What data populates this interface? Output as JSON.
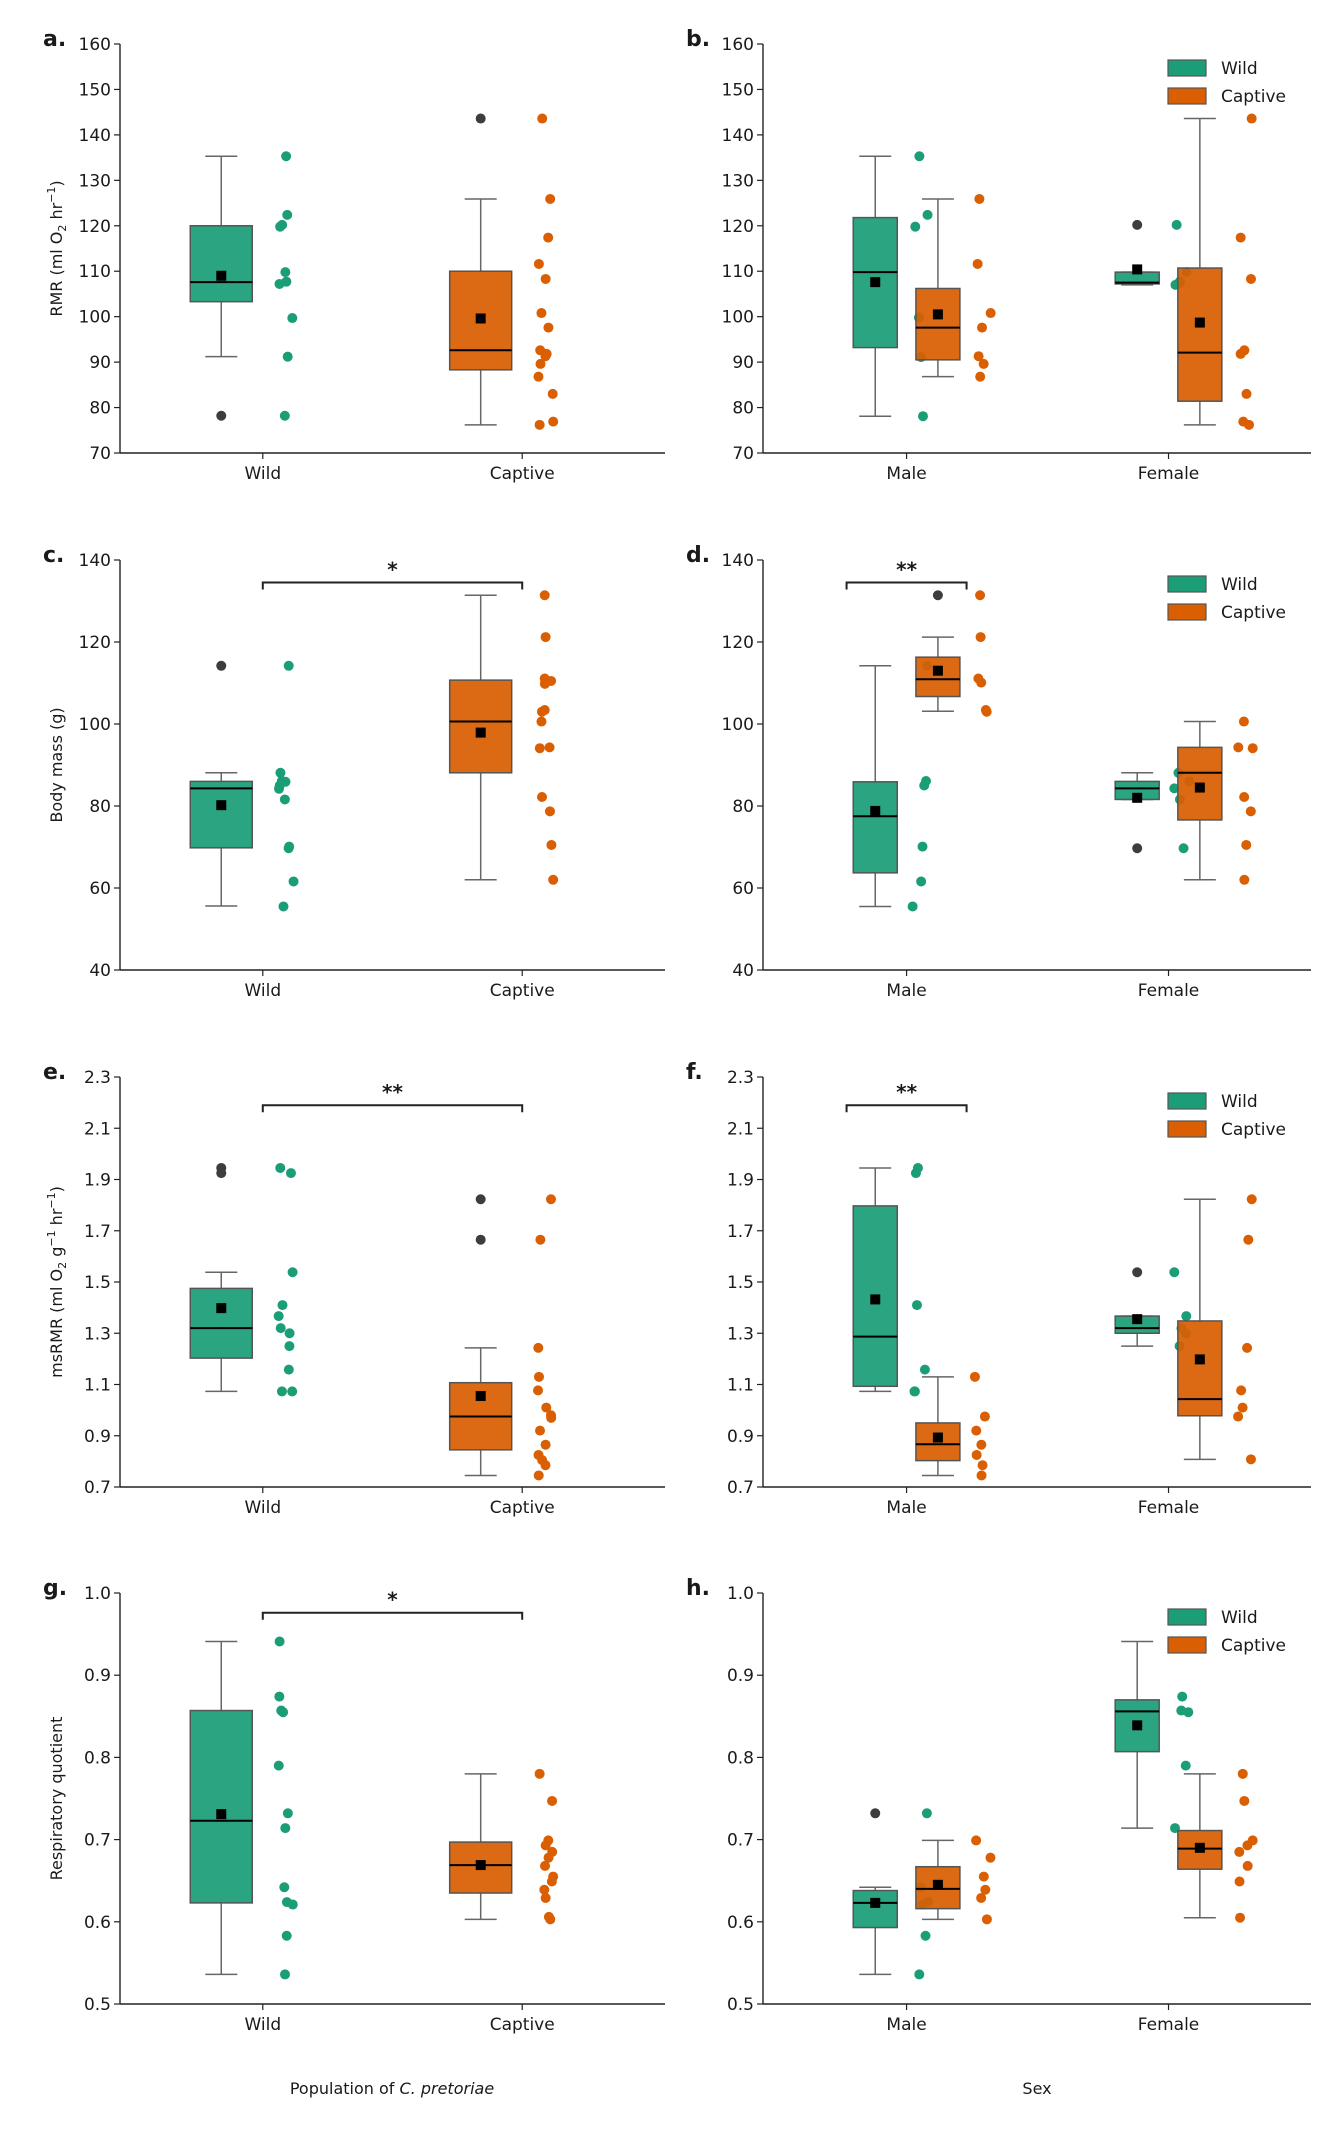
{
  "figure": {
    "colors": {
      "wild": "#1b9e77",
      "captive": "#d95f02",
      "outlier": "#3d3d3d",
      "mean": "#000000",
      "box_edge": "#555555"
    },
    "legend": {
      "entries": [
        "Wild",
        "Captive"
      ],
      "placement": "top-right"
    },
    "bottom_xlabels": {
      "left": {
        "prefix": "Population of ",
        "italic": "C. pretoriae"
      },
      "right": "Sex"
    }
  },
  "chart_data": [
    {
      "id": "a",
      "letter": "a.",
      "type": "box",
      "grouping": "population",
      "ylabel": "RMR (ml O2 hr-1)",
      "ylabel_parts": [
        "RMR (ml O",
        "2",
        " hr",
        "−1",
        ")"
      ],
      "ylim": [
        70,
        160
      ],
      "yticks": [
        70,
        80,
        90,
        100,
        110,
        120,
        130,
        140,
        150,
        160
      ],
      "tick_fmt": 0,
      "categories": [
        "Wild",
        "Captive"
      ],
      "legend": false,
      "significance": null,
      "groups": [
        {
          "category": "Wild",
          "series": "Wild",
          "q1": 103.3,
          "median": 107.6,
          "q3": 120.0,
          "whisker_low": 91.2,
          "whisker_high": 135.3,
          "mean": 109.0,
          "outliers": [
            78.2
          ],
          "points": [
            135.3,
            122.4,
            119.8,
            120.2,
            109.8,
            107.7,
            107.2,
            99.7,
            91.2,
            78.2
          ]
        },
        {
          "category": "Captive",
          "series": "Captive",
          "q1": 88.3,
          "median": 92.6,
          "q3": 110.0,
          "whisker_low": 76.2,
          "whisker_high": 125.9,
          "mean": 99.6,
          "outliers": [
            143.6
          ],
          "points": [
            143.6,
            125.9,
            117.4,
            111.6,
            108.3,
            100.8,
            97.6,
            92.6,
            91.8,
            91.3,
            89.6,
            86.8,
            83.0,
            76.9,
            76.2
          ]
        }
      ]
    },
    {
      "id": "b",
      "letter": "b.",
      "type": "box",
      "grouping": "sex",
      "ylabel": "",
      "ylim": [
        70,
        160
      ],
      "yticks": [
        70,
        80,
        90,
        100,
        110,
        120,
        130,
        140,
        150,
        160
      ],
      "tick_fmt": 0,
      "categories": [
        "Male",
        "Female"
      ],
      "legend": true,
      "significance": null,
      "groups": [
        {
          "category": "Male",
          "series": "Wild",
          "q1": 93.2,
          "median": 109.8,
          "q3": 121.8,
          "whisker_low": 78.1,
          "whisker_high": 135.3,
          "mean": 107.6,
          "outliers": [],
          "points": [
            135.3,
            122.4,
            119.8,
            99.8,
            91.1,
            78.1
          ]
        },
        {
          "category": "Male",
          "series": "Captive",
          "q1": 90.5,
          "median": 97.6,
          "q3": 106.2,
          "whisker_low": 86.8,
          "whisker_high": 125.9,
          "mean": 100.5,
          "outliers": [],
          "points": [
            125.9,
            111.6,
            100.8,
            97.6,
            91.3,
            89.6,
            86.8
          ]
        },
        {
          "category": "Female",
          "series": "Wild",
          "q1": 107.2,
          "median": 107.5,
          "q3": 109.8,
          "whisker_low": 107.0,
          "whisker_high": 109.8,
          "mean": 110.4,
          "outliers": [
            120.2
          ],
          "points": [
            120.2,
            109.8,
            107.7,
            107.4,
            107.0
          ]
        },
        {
          "category": "Female",
          "series": "Captive",
          "q1": 81.4,
          "median": 92.1,
          "q3": 110.7,
          "whisker_low": 76.2,
          "whisker_high": 143.6,
          "mean": 98.7,
          "outliers": [],
          "points": [
            143.6,
            117.4,
            108.3,
            92.6,
            91.8,
            83.0,
            76.9,
            76.2
          ]
        }
      ]
    },
    {
      "id": "c",
      "letter": "c.",
      "type": "box",
      "grouping": "population",
      "ylabel": "Body mass (g)",
      "ylim": [
        40,
        140
      ],
      "yticks": [
        40,
        60,
        80,
        100,
        120,
        140
      ],
      "tick_fmt": 0,
      "categories": [
        "Wild",
        "Captive"
      ],
      "legend": false,
      "significance": {
        "label": "*",
        "from": 0,
        "to": 1,
        "y": 134.5
      },
      "groups": [
        {
          "category": "Wild",
          "series": "Wild",
          "q1": 69.8,
          "median": 84.3,
          "q3": 86.0,
          "whisker_low": 55.6,
          "whisker_high": 88.1,
          "mean": 80.2,
          "outliers": [
            114.2
          ],
          "points": [
            114.2,
            88.1,
            86.1,
            85.9,
            85.0,
            84.2,
            81.6,
            70.1,
            69.7,
            61.6,
            55.5
          ]
        },
        {
          "category": "Captive",
          "series": "Captive",
          "q1": 88.1,
          "median": 100.6,
          "q3": 110.7,
          "whisker_low": 62.0,
          "whisker_high": 131.4,
          "mean": 97.9,
          "outliers": [],
          "points": [
            131.4,
            121.2,
            111.1,
            110.5,
            109.8,
            103.4,
            103.0,
            100.6,
            94.3,
            94.1,
            82.2,
            78.7,
            70.5,
            62.0
          ]
        }
      ]
    },
    {
      "id": "d",
      "letter": "d.",
      "type": "box",
      "grouping": "sex",
      "ylabel": "",
      "ylim": [
        40,
        140
      ],
      "yticks": [
        40,
        60,
        80,
        100,
        120,
        140
      ],
      "tick_fmt": 0,
      "categories": [
        "Male",
        "Female"
      ],
      "legend": true,
      "significance": {
        "label": "**",
        "from": 0,
        "to": 1,
        "y": 134.5,
        "within_category": 0
      },
      "groups": [
        {
          "category": "Male",
          "series": "Wild",
          "q1": 63.7,
          "median": 77.5,
          "q3": 85.9,
          "whisker_low": 55.5,
          "whisker_high": 114.2,
          "mean": 78.8,
          "outliers": [],
          "points": [
            114.2,
            86.1,
            85.0,
            70.1,
            61.6,
            55.5
          ]
        },
        {
          "category": "Male",
          "series": "Captive",
          "q1": 106.7,
          "median": 110.9,
          "q3": 116.3,
          "whisker_low": 103.1,
          "whisker_high": 121.2,
          "mean": 113.0,
          "outliers": [
            131.4
          ],
          "points": [
            131.4,
            121.2,
            111.1,
            110.1,
            103.4,
            103.0
          ]
        },
        {
          "category": "Female",
          "series": "Wild",
          "q1": 81.6,
          "median": 84.3,
          "q3": 86.0,
          "whisker_low": 81.6,
          "whisker_high": 88.1,
          "mean": 82.0,
          "outliers": [
            69.7
          ],
          "points": [
            88.1,
            86.0,
            84.3,
            81.6,
            69.7
          ]
        },
        {
          "category": "Female",
          "series": "Captive",
          "q1": 76.6,
          "median": 88.1,
          "q3": 94.3,
          "whisker_low": 62.0,
          "whisker_high": 100.6,
          "mean": 84.5,
          "outliers": [],
          "points": [
            100.6,
            94.3,
            94.1,
            82.2,
            78.7,
            70.5,
            62.0
          ]
        }
      ]
    },
    {
      "id": "e",
      "letter": "e.",
      "type": "box",
      "grouping": "population",
      "ylabel": "msRMR (ml O2 g-1 hr-1)",
      "ylabel_parts": [
        "msRMR (ml O",
        "2",
        " g",
        "−1",
        " hr",
        "−1",
        ")"
      ],
      "ylim": [
        0.7,
        2.3
      ],
      "yticks": [
        0.7,
        0.9,
        1.1,
        1.3,
        1.5,
        1.7,
        1.9,
        2.1,
        2.3
      ],
      "tick_fmt": 1,
      "categories": [
        "Wild",
        "Captive"
      ],
      "legend": false,
      "significance": {
        "label": "**",
        "from": 0,
        "to": 1,
        "y": 2.19
      },
      "groups": [
        {
          "category": "Wild",
          "series": "Wild",
          "q1": 1.203,
          "median": 1.32,
          "q3": 1.475,
          "whisker_low": 1.073,
          "whisker_high": 1.538,
          "mean": 1.398,
          "outliers": [
            1.945,
            1.925
          ],
          "points": [
            1.945,
            1.925,
            1.538,
            1.41,
            1.367,
            1.32,
            1.3,
            1.25,
            1.158,
            1.073,
            1.073
          ]
        },
        {
          "category": "Captive",
          "series": "Captive",
          "q1": 0.845,
          "median": 0.975,
          "q3": 1.107,
          "whisker_low": 0.745,
          "whisker_high": 1.243,
          "mean": 1.055,
          "outliers": [
            1.823,
            1.665
          ],
          "points": [
            1.823,
            1.665,
            1.243,
            1.13,
            1.077,
            1.01,
            0.98,
            0.97,
            0.92,
            0.865,
            0.825,
            0.805,
            0.785,
            0.745
          ]
        }
      ]
    },
    {
      "id": "f",
      "letter": "f.",
      "type": "box",
      "grouping": "sex",
      "ylabel": "",
      "ylim": [
        0.7,
        2.3
      ],
      "yticks": [
        0.7,
        0.9,
        1.1,
        1.3,
        1.5,
        1.7,
        1.9,
        2.1,
        2.3
      ],
      "tick_fmt": 1,
      "categories": [
        "Male",
        "Female"
      ],
      "legend": true,
      "significance": {
        "label": "**",
        "from": 0,
        "to": 1,
        "y": 2.19,
        "within_category": 0
      },
      "groups": [
        {
          "category": "Male",
          "series": "Wild",
          "q1": 1.093,
          "median": 1.287,
          "q3": 1.797,
          "whisker_low": 1.073,
          "whisker_high": 1.945,
          "mean": 1.432,
          "outliers": [],
          "points": [
            1.945,
            1.925,
            1.41,
            1.158,
            1.073,
            1.073
          ]
        },
        {
          "category": "Male",
          "series": "Captive",
          "q1": 0.803,
          "median": 0.867,
          "q3": 0.95,
          "whisker_low": 0.745,
          "whisker_high": 1.13,
          "mean": 0.893,
          "outliers": [],
          "points": [
            1.13,
            0.975,
            0.92,
            0.865,
            0.825,
            0.785,
            0.745
          ]
        },
        {
          "category": "Female",
          "series": "Wild",
          "q1": 1.3,
          "median": 1.32,
          "q3": 1.367,
          "whisker_low": 1.25,
          "whisker_high": 1.367,
          "mean": 1.355,
          "outliers": [
            1.538
          ],
          "points": [
            1.538,
            1.367,
            1.32,
            1.3,
            1.25
          ]
        },
        {
          "category": "Female",
          "series": "Captive",
          "q1": 0.978,
          "median": 1.043,
          "q3": 1.348,
          "whisker_low": 0.808,
          "whisker_high": 1.823,
          "mean": 1.198,
          "outliers": [],
          "points": [
            1.823,
            1.665,
            1.243,
            1.077,
            1.01,
            0.975,
            0.808
          ]
        }
      ]
    },
    {
      "id": "g",
      "letter": "g.",
      "type": "box",
      "grouping": "population",
      "ylabel": "Respiratory quotient",
      "ylim": [
        0.5,
        1.0
      ],
      "yticks": [
        0.5,
        0.6,
        0.7,
        0.8,
        0.9,
        1.0
      ],
      "tick_fmt": 1,
      "categories": [
        "Wild",
        "Captive"
      ],
      "legend": false,
      "significance": {
        "label": "*",
        "from": 0,
        "to": 1,
        "y": 0.976
      },
      "groups": [
        {
          "category": "Wild",
          "series": "Wild",
          "q1": 0.623,
          "median": 0.723,
          "q3": 0.857,
          "whisker_low": 0.536,
          "whisker_high": 0.941,
          "mean": 0.731,
          "outliers": [],
          "points": [
            0.941,
            0.874,
            0.857,
            0.855,
            0.79,
            0.732,
            0.714,
            0.642,
            0.624,
            0.621,
            0.583,
            0.536
          ]
        },
        {
          "category": "Captive",
          "series": "Captive",
          "q1": 0.635,
          "median": 0.669,
          "q3": 0.697,
          "whisker_low": 0.603,
          "whisker_high": 0.78,
          "mean": 0.669,
          "outliers": [],
          "points": [
            0.78,
            0.747,
            0.699,
            0.693,
            0.685,
            0.678,
            0.668,
            0.655,
            0.649,
            0.639,
            0.629,
            0.606,
            0.603
          ]
        }
      ]
    },
    {
      "id": "h",
      "letter": "h.",
      "type": "box",
      "grouping": "sex",
      "ylabel": "",
      "ylim": [
        0.5,
        1.0
      ],
      "yticks": [
        0.5,
        0.6,
        0.7,
        0.8,
        0.9,
        1.0
      ],
      "tick_fmt": 1,
      "categories": [
        "Male",
        "Female"
      ],
      "legend": true,
      "significance": null,
      "groups": [
        {
          "category": "Male",
          "series": "Wild",
          "q1": 0.593,
          "median": 0.623,
          "q3": 0.638,
          "whisker_low": 0.536,
          "whisker_high": 0.642,
          "mean": 0.623,
          "outliers": [
            0.732
          ],
          "points": [
            0.732,
            0.642,
            0.624,
            0.621,
            0.583,
            0.536
          ]
        },
        {
          "category": "Male",
          "series": "Captive",
          "q1": 0.616,
          "median": 0.64,
          "q3": 0.667,
          "whisker_low": 0.603,
          "whisker_high": 0.699,
          "mean": 0.645,
          "outliers": [],
          "points": [
            0.699,
            0.678,
            0.655,
            0.639,
            0.629,
            0.603
          ]
        },
        {
          "category": "Female",
          "series": "Wild",
          "q1": 0.807,
          "median": 0.856,
          "q3": 0.87,
          "whisker_low": 0.714,
          "whisker_high": 0.941,
          "mean": 0.839,
          "outliers": [],
          "points": [
            0.941,
            0.874,
            0.857,
            0.855,
            0.79,
            0.714
          ]
        },
        {
          "category": "Female",
          "series": "Captive",
          "q1": 0.664,
          "median": 0.689,
          "q3": 0.711,
          "whisker_low": 0.605,
          "whisker_high": 0.78,
          "mean": 0.69,
          "outliers": [],
          "points": [
            0.78,
            0.747,
            0.699,
            0.693,
            0.685,
            0.668,
            0.649,
            0.605
          ]
        }
      ]
    }
  ]
}
